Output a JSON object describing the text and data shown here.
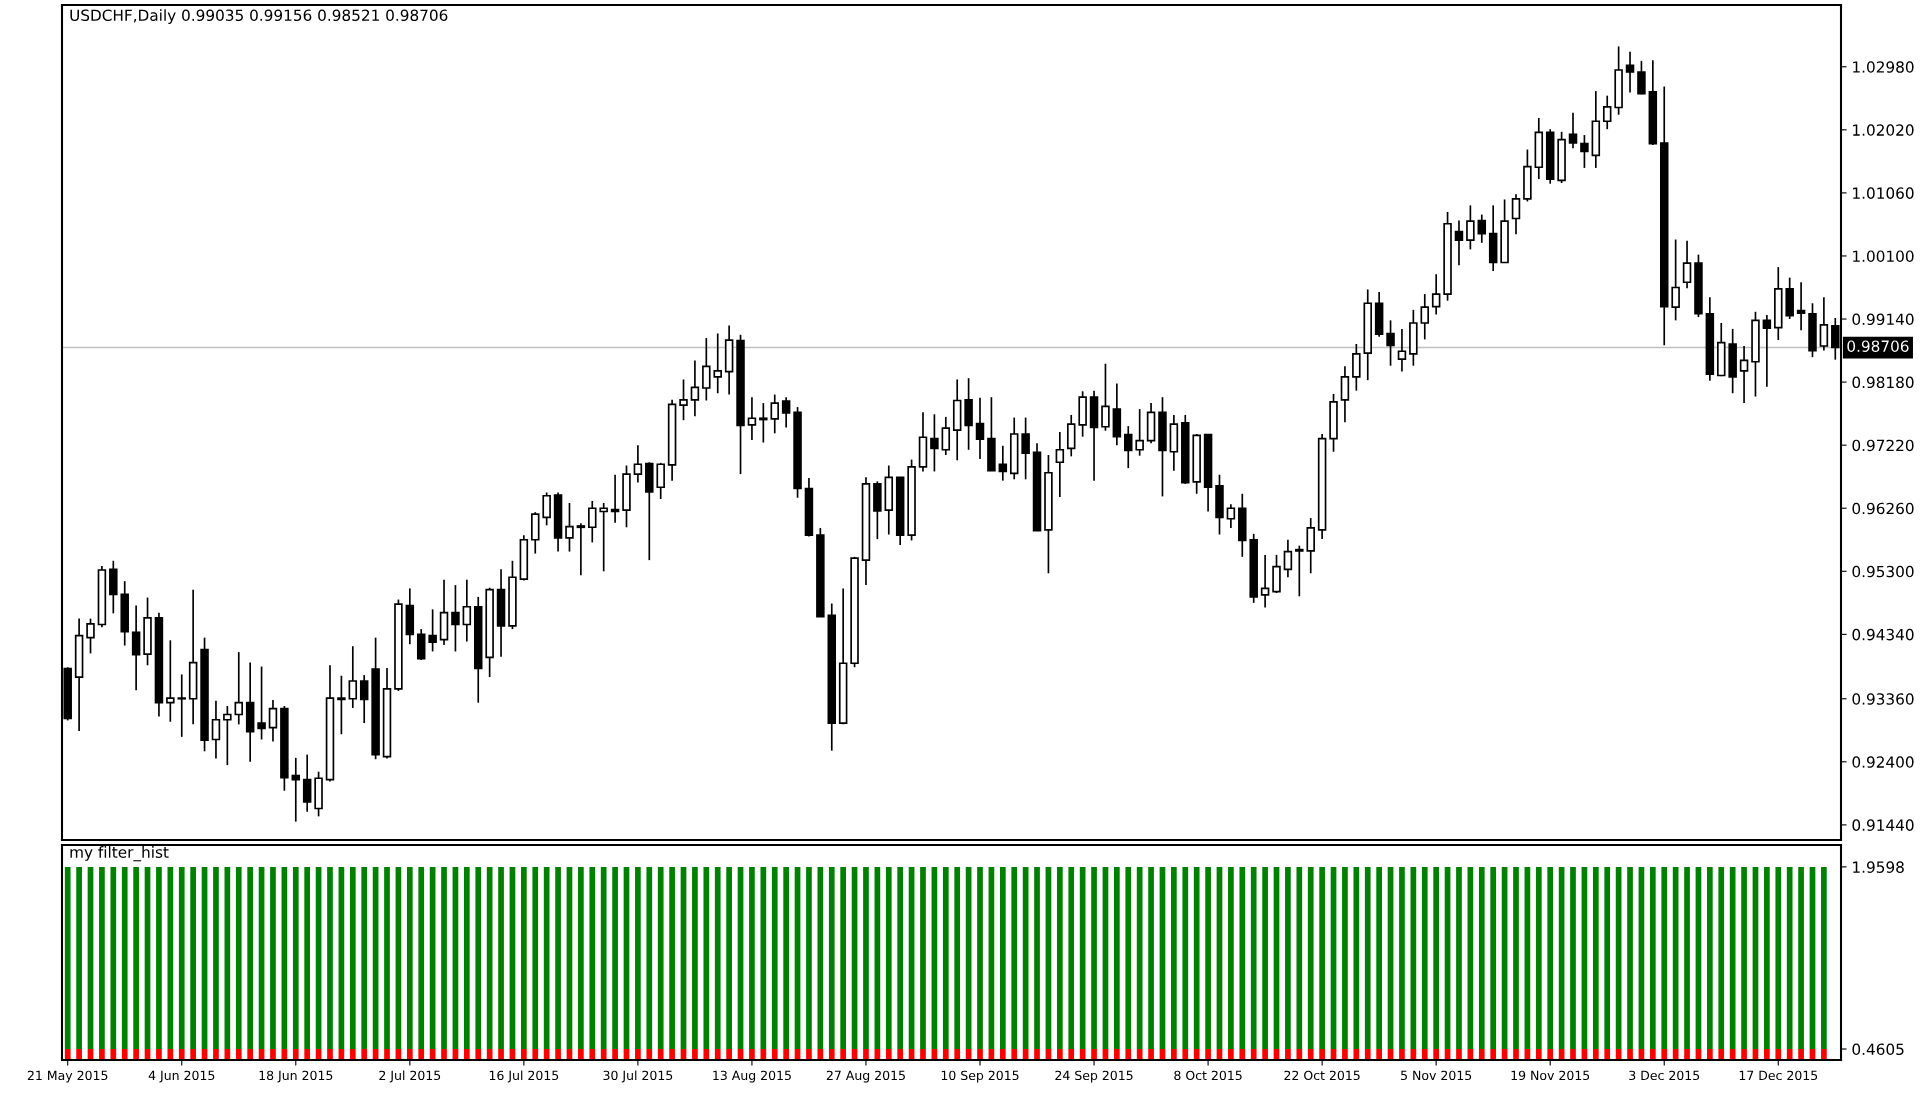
{
  "chart_data": [
    {
      "type": "candlestick",
      "title": "USDCHF,Daily 0.99035 0.99156 0.98521 0.98706",
      "tick_labels": "y",
      "categories": [
        null,
        null,
        null,
        null,
        null,
        null,
        null,
        null,
        null,
        null,
        null,
        null,
        null,
        null,
        null,
        null,
        null,
        null,
        null,
        null,
        null,
        null,
        null,
        null,
        null,
        null,
        null,
        null,
        null,
        null,
        null,
        null,
        null,
        null,
        null,
        null,
        null,
        null,
        null,
        null,
        null,
        null,
        null,
        null,
        null,
        null,
        null,
        null,
        null,
        null,
        null,
        null,
        null,
        null,
        null,
        null,
        null,
        null,
        null,
        null,
        null,
        null,
        null,
        null,
        null,
        null,
        null,
        null,
        null,
        null,
        null,
        null,
        null,
        null,
        null,
        null,
        null,
        null,
        null,
        null,
        null,
        null,
        null,
        null,
        null,
        null,
        null,
        null,
        null,
        null,
        null,
        null,
        null,
        null,
        null,
        null,
        null,
        null,
        null,
        null,
        null,
        null,
        null,
        null,
        null,
        null,
        null,
        null,
        null,
        null,
        null,
        null,
        null,
        null,
        null,
        null,
        null,
        null,
        null,
        null,
        null,
        null,
        null,
        null,
        null,
        null,
        null,
        null,
        null,
        null,
        null,
        null,
        null,
        null,
        null,
        null,
        null,
        null,
        null,
        null,
        null,
        null,
        null,
        null,
        null,
        null,
        null,
        null,
        null,
        null,
        null,
        null,
        null,
        null,
        null,
        null
      ],
      "ohlc": [
        [
          0.9382,
          0.9384,
          0.9303,
          0.9306
        ],
        [
          0.9369,
          0.9458,
          0.9287,
          0.9432
        ],
        [
          0.9429,
          0.9458,
          0.9405,
          0.945
        ],
        [
          0.9449,
          0.9538,
          0.9445,
          0.9532
        ],
        [
          0.9533,
          0.9546,
          0.9466,
          0.9495
        ],
        [
          0.9495,
          0.9515,
          0.9417,
          0.9438
        ],
        [
          0.9437,
          0.9478,
          0.9349,
          0.9403
        ],
        [
          0.9404,
          0.949,
          0.9387,
          0.9459
        ],
        [
          0.9459,
          0.9467,
          0.9309,
          0.933
        ],
        [
          0.933,
          0.9425,
          0.9301,
          0.9337
        ],
        [
          0.9337,
          0.9373,
          0.9278,
          0.9336
        ],
        [
          0.9336,
          0.9502,
          0.9297,
          0.9391
        ],
        [
          0.9411,
          0.9429,
          0.9256,
          0.9273
        ],
        [
          0.9274,
          0.9333,
          0.9245,
          0.9304
        ],
        [
          0.9304,
          0.9325,
          0.9235,
          0.9312
        ],
        [
          0.9312,
          0.9407,
          0.9297,
          0.933
        ],
        [
          0.933,
          0.9391,
          0.924,
          0.9286
        ],
        [
          0.9299,
          0.9385,
          0.9274,
          0.9291
        ],
        [
          0.9292,
          0.9334,
          0.9271,
          0.9321
        ],
        [
          0.9321,
          0.9325,
          0.9196,
          0.9216
        ],
        [
          0.9219,
          0.9246,
          0.9149,
          0.9213
        ],
        [
          0.9213,
          0.9251,
          0.9164,
          0.9179
        ],
        [
          0.9169,
          0.9225,
          0.9157,
          0.9215
        ],
        [
          0.9213,
          0.9387,
          0.921,
          0.9337
        ],
        [
          0.9337,
          0.9371,
          0.9282,
          0.9335
        ],
        [
          0.9336,
          0.9416,
          0.9322,
          0.9363
        ],
        [
          0.9363,
          0.9372,
          0.9299,
          0.9335
        ],
        [
          0.9381,
          0.9429,
          0.9244,
          0.9251
        ],
        [
          0.9248,
          0.9383,
          0.9245,
          0.9351
        ],
        [
          0.9351,
          0.9487,
          0.9348,
          0.948
        ],
        [
          0.9478,
          0.9504,
          0.9419,
          0.9434
        ],
        [
          0.9434,
          0.9442,
          0.9395,
          0.9397
        ],
        [
          0.9432,
          0.9472,
          0.9408,
          0.9422
        ],
        [
          0.9426,
          0.9517,
          0.9418,
          0.9467
        ],
        [
          0.9467,
          0.9509,
          0.9408,
          0.9449
        ],
        [
          0.9449,
          0.9517,
          0.9423,
          0.9476
        ],
        [
          0.9476,
          0.9491,
          0.933,
          0.9382
        ],
        [
          0.9399,
          0.9505,
          0.9369,
          0.9502
        ],
        [
          0.9502,
          0.9533,
          0.94,
          0.9447
        ],
        [
          0.9447,
          0.9546,
          0.9442,
          0.9521
        ],
        [
          0.9518,
          0.9585,
          0.9516,
          0.9578
        ],
        [
          0.9578,
          0.962,
          0.9557,
          0.9617
        ],
        [
          0.9612,
          0.965,
          0.96,
          0.9645
        ],
        [
          0.9646,
          0.965,
          0.956,
          0.9581
        ],
        [
          0.9581,
          0.9634,
          0.956,
          0.9598
        ],
        [
          0.9597,
          0.9603,
          0.9524,
          0.9599
        ],
        [
          0.9597,
          0.9637,
          0.9574,
          0.9626
        ],
        [
          0.9621,
          0.9634,
          0.953,
          0.9626
        ],
        [
          0.9624,
          0.9677,
          0.9604,
          0.9621
        ],
        [
          0.9623,
          0.9691,
          0.9597,
          0.9678
        ],
        [
          0.9678,
          0.9722,
          0.9665,
          0.9693
        ],
        [
          0.9694,
          0.9696,
          0.9547,
          0.9651
        ],
        [
          0.9658,
          0.9695,
          0.964,
          0.9693
        ],
        [
          0.9692,
          0.9791,
          0.9668,
          0.9784
        ],
        [
          0.9783,
          0.9822,
          0.976,
          0.9791
        ],
        [
          0.9791,
          0.9851,
          0.9766,
          0.981
        ],
        [
          0.9809,
          0.9885,
          0.979,
          0.9842
        ],
        [
          0.9826,
          0.9892,
          0.9801,
          0.9835
        ],
        [
          0.9834,
          0.9904,
          0.9799,
          0.9882
        ],
        [
          0.9881,
          0.989,
          0.9678,
          0.9752
        ],
        [
          0.9753,
          0.9795,
          0.973,
          0.9763
        ],
        [
          0.9763,
          0.9786,
          0.9726,
          0.9761
        ],
        [
          0.9762,
          0.9799,
          0.974,
          0.9786
        ],
        [
          0.9789,
          0.9795,
          0.9749,
          0.9771
        ],
        [
          0.9772,
          0.978,
          0.9642,
          0.9656
        ],
        [
          0.9656,
          0.9672,
          0.9583,
          0.9585
        ],
        [
          0.9585,
          0.9596,
          0.9461,
          0.9461
        ],
        [
          0.9463,
          0.9481,
          0.9257,
          0.9299
        ],
        [
          0.9299,
          0.9504,
          0.9297,
          0.939
        ],
        [
          0.939,
          0.9552,
          0.9384,
          0.955
        ],
        [
          0.9547,
          0.9673,
          0.9509,
          0.9663
        ],
        [
          0.9663,
          0.9667,
          0.9579,
          0.9622
        ],
        [
          0.9623,
          0.9691,
          0.9586,
          0.9673
        ],
        [
          0.9673,
          0.9673,
          0.957,
          0.9585
        ],
        [
          0.9585,
          0.97,
          0.9577,
          0.9689
        ],
        [
          0.9689,
          0.9772,
          0.9682,
          0.9734
        ],
        [
          0.9732,
          0.9769,
          0.9682,
          0.9717
        ],
        [
          0.9715,
          0.9765,
          0.9707,
          0.9748
        ],
        [
          0.9745,
          0.9822,
          0.9699,
          0.979
        ],
        [
          0.9791,
          0.9824,
          0.9715,
          0.9752
        ],
        [
          0.9755,
          0.9794,
          0.9701,
          0.9731
        ],
        [
          0.9732,
          0.9795,
          0.9683,
          0.9683
        ],
        [
          0.9693,
          0.9721,
          0.9668,
          0.9682
        ],
        [
          0.9679,
          0.9764,
          0.967,
          0.9739
        ],
        [
          0.9739,
          0.9764,
          0.967,
          0.971
        ],
        [
          0.9711,
          0.9725,
          0.9592,
          0.9592
        ],
        [
          0.9593,
          0.9707,
          0.9527,
          0.968
        ],
        [
          0.9696,
          0.9742,
          0.9643,
          0.9715
        ],
        [
          0.9717,
          0.9768,
          0.9705,
          0.9754
        ],
        [
          0.9753,
          0.9804,
          0.9735,
          0.9795
        ],
        [
          0.9795,
          0.9805,
          0.9668,
          0.9749
        ],
        [
          0.975,
          0.9846,
          0.9744,
          0.9781
        ],
        [
          0.9777,
          0.9816,
          0.9722,
          0.9735
        ],
        [
          0.9738,
          0.9751,
          0.9687,
          0.9714
        ],
        [
          0.9715,
          0.9777,
          0.9706,
          0.9729
        ],
        [
          0.9729,
          0.9786,
          0.9725,
          0.9772
        ],
        [
          0.9772,
          0.9795,
          0.9644,
          0.9714
        ],
        [
          0.9712,
          0.9768,
          0.9683,
          0.9754
        ],
        [
          0.9756,
          0.9768,
          0.9663,
          0.9665
        ],
        [
          0.9666,
          0.9739,
          0.9648,
          0.9737
        ],
        [
          0.9738,
          0.9738,
          0.9621,
          0.9658
        ],
        [
          0.966,
          0.9677,
          0.9586,
          0.9612
        ],
        [
          0.961,
          0.9632,
          0.9596,
          0.9626
        ],
        [
          0.9626,
          0.9648,
          0.9552,
          0.9577
        ],
        [
          0.9578,
          0.9587,
          0.9482,
          0.9491
        ],
        [
          0.9494,
          0.9555,
          0.9475,
          0.9504
        ],
        [
          0.9499,
          0.9555,
          0.9497,
          0.9537
        ],
        [
          0.9533,
          0.9578,
          0.9521,
          0.956
        ],
        [
          0.9563,
          0.9569,
          0.9492,
          0.9561
        ],
        [
          0.9561,
          0.9611,
          0.9527,
          0.9596
        ],
        [
          0.9593,
          0.9739,
          0.9579,
          0.9732
        ],
        [
          0.9732,
          0.98,
          0.9712,
          0.9788
        ],
        [
          0.9791,
          0.9842,
          0.9757,
          0.9826
        ],
        [
          0.9826,
          0.9876,
          0.9805,
          0.9861
        ],
        [
          0.9862,
          0.9959,
          0.9821,
          0.9938
        ],
        [
          0.9938,
          0.9955,
          0.9887,
          0.9891
        ],
        [
          0.9892,
          0.9912,
          0.9843,
          0.9874
        ],
        [
          0.9853,
          0.9899,
          0.9834,
          0.9865
        ],
        [
          0.9861,
          0.9928,
          0.9843,
          0.9908
        ],
        [
          0.9908,
          0.9952,
          0.9883,
          0.9932
        ],
        [
          0.9933,
          0.9982,
          0.9921,
          0.9952
        ],
        [
          0.9952,
          1.0077,
          0.9942,
          1.0059
        ],
        [
          1.0047,
          1.0064,
          0.9996,
          1.0034
        ],
        [
          1.0034,
          1.0087,
          1.002,
          1.0063
        ],
        [
          1.0064,
          1.0073,
          1.003,
          1.0044
        ],
        [
          1.0044,
          1.0087,
          0.9987,
          1.0
        ],
        [
          1.0,
          1.0096,
          1.0,
          1.0063
        ],
        [
          1.0067,
          1.0104,
          1.0043,
          1.0097
        ],
        [
          1.0097,
          1.0172,
          1.0093,
          1.0146
        ],
        [
          1.0145,
          1.022,
          1.0127,
          1.0198
        ],
        [
          1.0198,
          1.0203,
          1.012,
          1.0127
        ],
        [
          1.0125,
          1.0199,
          1.0121,
          1.0187
        ],
        [
          1.0195,
          1.0228,
          1.0174,
          1.0182
        ],
        [
          1.0181,
          1.0194,
          1.0144,
          1.0169
        ],
        [
          1.0163,
          1.0261,
          1.0144,
          1.0215
        ],
        [
          1.0215,
          1.0254,
          1.0203,
          1.0237
        ],
        [
          1.0236,
          1.0329,
          1.0225,
          1.0293
        ],
        [
          1.03,
          1.0321,
          1.0259,
          1.029
        ],
        [
          1.029,
          1.0307,
          1.0256,
          1.0257
        ],
        [
          1.026,
          1.0308,
          1.0179,
          1.0181
        ],
        [
          1.0182,
          1.0268,
          0.9874,
          0.9933
        ],
        [
          0.9932,
          1.0035,
          0.9912,
          0.9962
        ],
        [
          0.997,
          1.0033,
          0.9961,
          0.9999
        ],
        [
          0.9999,
          1.0012,
          0.9917,
          0.9922
        ],
        [
          0.9922,
          0.9947,
          0.982,
          0.983
        ],
        [
          0.9828,
          0.9908,
          0.9827,
          0.9878
        ],
        [
          0.9876,
          0.9899,
          0.9801,
          0.9826
        ],
        [
          0.9835,
          0.9873,
          0.9786,
          0.9851
        ],
        [
          0.9849,
          0.9925,
          0.9796,
          0.9912
        ],
        [
          0.9912,
          0.992,
          0.9811,
          0.99
        ],
        [
          0.9901,
          0.9993,
          0.9882,
          0.996
        ],
        [
          0.996,
          0.9977,
          0.9914,
          0.9919
        ],
        [
          0.9927,
          0.997,
          0.9897,
          0.9923
        ],
        [
          0.9922,
          0.9938,
          0.9856,
          0.9866
        ],
        [
          0.9873,
          0.9947,
          0.9866,
          0.9905
        ],
        [
          0.99035,
          0.99156,
          0.98521,
          0.98706
        ]
      ],
      "ylim": [
        0.9121,
        1.0392
      ],
      "yticks": [
        {
          "value": 1.0298,
          "label": "1.02980"
        },
        {
          "value": 1.0202,
          "label": "1.02020"
        },
        {
          "value": 1.0106,
          "label": "1.01060"
        },
        {
          "value": 1.001,
          "label": "1.00100"
        },
        {
          "value": 0.9914,
          "label": "0.99140"
        },
        {
          "value": 0.9818,
          "label": "0.98180"
        },
        {
          "value": 0.9722,
          "label": "0.97220"
        },
        {
          "value": 0.9626,
          "label": "0.96260"
        },
        {
          "value": 0.953,
          "label": "0.95300"
        },
        {
          "value": 0.9434,
          "label": "0.94340"
        },
        {
          "value": 0.9336,
          "label": "0.93360"
        },
        {
          "value": 0.924,
          "label": "0.92400"
        },
        {
          "value": 0.9144,
          "label": "0.91440"
        }
      ],
      "ref_lines": [
        {
          "axis": "y",
          "value": 0.98706,
          "label": "0.98706",
          "color": "#c0c0c0"
        }
      ]
    },
    {
      "type": "bar",
      "stacked": true,
      "title": "my filter_hist",
      "categories": [
        "21 May 2015",
        null,
        null,
        null,
        null,
        null,
        null,
        null,
        null,
        null,
        "4 Jun 2015",
        null,
        null,
        null,
        null,
        null,
        null,
        null,
        null,
        null,
        "18 Jun 2015",
        null,
        null,
        null,
        null,
        null,
        null,
        null,
        null,
        null,
        "2 Jul 2015",
        null,
        null,
        null,
        null,
        null,
        null,
        null,
        null,
        null,
        "16 Jul 2015",
        null,
        null,
        null,
        null,
        null,
        null,
        null,
        null,
        null,
        "30 Jul 2015",
        null,
        null,
        null,
        null,
        null,
        null,
        null,
        null,
        null,
        "13 Aug 2015",
        null,
        null,
        null,
        null,
        null,
        null,
        null,
        null,
        null,
        "27 Aug 2015",
        null,
        null,
        null,
        null,
        null,
        null,
        null,
        null,
        null,
        "10 Sep 2015",
        null,
        null,
        null,
        null,
        null,
        null,
        null,
        null,
        null,
        "24 Sep 2015",
        null,
        null,
        null,
        null,
        null,
        null,
        null,
        null,
        null,
        "8 Oct 2015",
        null,
        null,
        null,
        null,
        null,
        null,
        null,
        null,
        null,
        "22 Oct 2015",
        null,
        null,
        null,
        null,
        null,
        null,
        null,
        null,
        null,
        "5 Nov 2015",
        null,
        null,
        null,
        null,
        null,
        null,
        null,
        null,
        null,
        "19 Nov 2015",
        null,
        null,
        null,
        null,
        null,
        null,
        null,
        null,
        null,
        "3 Dec 2015",
        null,
        null,
        null,
        null,
        null,
        null,
        null,
        null,
        null,
        "17 Dec 2015",
        null,
        null,
        null,
        null,
        null
      ],
      "series": [
        {
          "color": "#ff0000",
          "values": [
            0.4605,
            0.4605,
            0.4605,
            0.4605,
            0.4605,
            0.4605,
            0.4605,
            0.4605,
            0.4605,
            0.4605,
            0.4605,
            0.4605,
            0.4605,
            0.4605,
            0.4605,
            0.4605,
            0.4605,
            0.4605,
            0.4605,
            0.4605,
            0.4605,
            0.4605,
            0.4605,
            0.4605,
            0.4605,
            0.4605,
            0.4605,
            0.4605,
            0.4605,
            0.4605,
            0.4605,
            0.4605,
            0.4605,
            0.4605,
            0.4605,
            0.4605,
            0.4605,
            0.4605,
            0.4605,
            0.4605,
            0.4605,
            0.4605,
            0.4605,
            0.4605,
            0.4605,
            0.4605,
            0.4605,
            0.4605,
            0.4605,
            0.4605,
            0.4605,
            0.4605,
            0.4605,
            0.4605,
            0.4605,
            0.4605,
            0.4605,
            0.4605,
            0.4605,
            0.4605,
            0.4605,
            0.4605,
            0.4605,
            0.4605,
            0.4605,
            0.4605,
            0.4605,
            0.4605,
            0.4605,
            0.4605,
            0.4605,
            0.4605,
            0.4605,
            0.4605,
            0.4605,
            0.4605,
            0.4605,
            0.4605,
            0.4605,
            0.4605,
            0.4605,
            0.4605,
            0.4605,
            0.4605,
            0.4605,
            0.4605,
            0.4605,
            0.4605,
            0.4605,
            0.4605,
            0.4605,
            0.4605,
            0.4605,
            0.4605,
            0.4605,
            0.4605,
            0.4605,
            0.4605,
            0.4605,
            0.4605,
            0.4605,
            0.4605,
            0.4605,
            0.4605,
            0.4605,
            0.4605,
            0.4605,
            0.4605,
            0.4605,
            0.4605,
            0.4605,
            0.4605,
            0.4605,
            0.4605,
            0.4605,
            0.4605,
            0.4605,
            0.4605,
            0.4605,
            0.4605,
            0.4605,
            0.4605,
            0.4605,
            0.4605,
            0.4605,
            0.4605,
            0.4605,
            0.4605,
            0.4605,
            0.4605,
            0.4605,
            0.4605,
            0.4605,
            0.4605,
            0.4605,
            0.4605,
            0.4605,
            0.4605,
            0.4605,
            0.4605,
            0.4605,
            0.4605,
            0.4605,
            0.4605,
            0.4605,
            0.4605,
            0.4605,
            0.4605,
            0.4605,
            0.4605,
            0.4605,
            0.4605,
            0.4605,
            0.4605,
            0.4605,
            null
          ]
        },
        {
          "color": "#008000",
          "values": [
            1.4993,
            1.4993,
            1.4993,
            1.4993,
            1.4993,
            1.4993,
            1.4993,
            1.4993,
            1.4993,
            1.4993,
            1.4993,
            1.4993,
            1.4993,
            1.4993,
            1.4993,
            1.4993,
            1.4993,
            1.4993,
            1.4993,
            1.4993,
            1.4993,
            1.4993,
            1.4993,
            1.4993,
            1.4993,
            1.4993,
            1.4993,
            1.4993,
            1.4993,
            1.4993,
            1.4993,
            1.4993,
            1.4993,
            1.4993,
            1.4993,
            1.4993,
            1.4993,
            1.4993,
            1.4993,
            1.4993,
            1.4993,
            1.4993,
            1.4993,
            1.4993,
            1.4993,
            1.4993,
            1.4993,
            1.4993,
            1.4993,
            1.4993,
            1.4993,
            1.4993,
            1.4993,
            1.4993,
            1.4993,
            1.4993,
            1.4993,
            1.4993,
            1.4993,
            1.4993,
            1.4993,
            1.4993,
            1.4993,
            1.4993,
            1.4993,
            1.4993,
            1.4993,
            1.4993,
            1.4993,
            1.4993,
            1.4993,
            1.4993,
            1.4993,
            1.4993,
            1.4993,
            1.4993,
            1.4993,
            1.4993,
            1.4993,
            1.4993,
            1.4993,
            1.4993,
            1.4993,
            1.4993,
            1.4993,
            1.4993,
            1.4993,
            1.4993,
            1.4993,
            1.4993,
            1.4993,
            1.4993,
            1.4993,
            1.4993,
            1.4993,
            1.4993,
            1.4993,
            1.4993,
            1.4993,
            1.4993,
            1.4993,
            1.4993,
            1.4993,
            1.4993,
            1.4993,
            1.4993,
            1.4993,
            1.4993,
            1.4993,
            1.4993,
            1.4993,
            1.4993,
            1.4993,
            1.4993,
            1.4993,
            1.4993,
            1.4993,
            1.4993,
            1.4993,
            1.4993,
            1.4993,
            1.4993,
            1.4993,
            1.4993,
            1.4993,
            1.4993,
            1.4993,
            1.4993,
            1.4993,
            1.4993,
            1.4993,
            1.4993,
            1.4993,
            1.4993,
            1.4993,
            1.4993,
            1.4993,
            1.4993,
            1.4993,
            1.4993,
            1.4993,
            1.4993,
            1.4993,
            1.4993,
            1.4993,
            1.4993,
            1.4993,
            1.4993,
            1.4993,
            1.4993,
            1.4993,
            1.4993,
            1.4993,
            1.4993,
            1.4993,
            null
          ]
        }
      ],
      "ylim": [
        0.37,
        2.14
      ],
      "yticks": [
        {
          "value": 1.9598,
          "label": "1.9598"
        },
        {
          "value": 0.4605,
          "label": "0.4605"
        }
      ]
    }
  ]
}
